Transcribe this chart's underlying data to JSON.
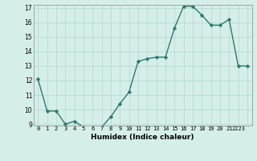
{
  "x": [
    0,
    1,
    2,
    3,
    4,
    5,
    6,
    7,
    8,
    9,
    10,
    11,
    12,
    13,
    14,
    15,
    16,
    17,
    18,
    19,
    20,
    21,
    22,
    23
  ],
  "y": [
    12.1,
    9.9,
    9.9,
    9.0,
    9.2,
    8.8,
    8.8,
    8.8,
    9.5,
    10.4,
    11.2,
    13.3,
    13.5,
    13.6,
    13.6,
    15.6,
    17.1,
    17.1,
    16.5,
    15.8,
    15.8,
    16.2,
    13.0,
    13.0
  ],
  "xlabel": "Humidex (Indice chaleur)",
  "ylim": [
    9,
    17
  ],
  "xlim": [
    -0.5,
    23.5
  ],
  "yticks": [
    9,
    10,
    11,
    12,
    13,
    14,
    15,
    16,
    17
  ],
  "xticks": [
    0,
    1,
    2,
    3,
    4,
    5,
    6,
    7,
    8,
    9,
    10,
    11,
    12,
    13,
    14,
    15,
    16,
    17,
    18,
    19,
    20,
    21,
    22,
    23
  ],
  "xtick_labels": [
    "0",
    "1",
    "2",
    "3",
    "4",
    "5",
    "6",
    "7",
    "8",
    "9",
    "10",
    "11",
    "12",
    "13",
    "14",
    "15",
    "16",
    "17",
    "18",
    "19",
    "20",
    "21",
    "2223",
    ""
  ],
  "line_color": "#2d7a6b",
  "marker_color": "#2d7a6b",
  "bg_color": "#d5eeea",
  "grid_color": "#b0d8d2",
  "title": ""
}
